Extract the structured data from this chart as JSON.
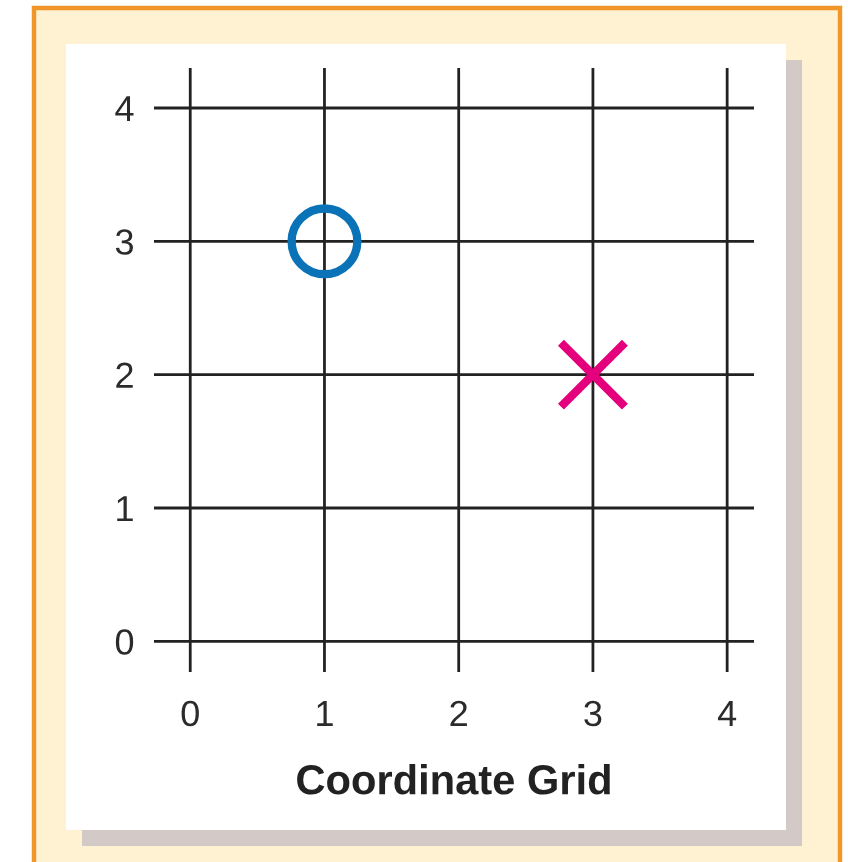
{
  "chart_data": {
    "type": "scatter",
    "xlabel": "Coordinate Grid",
    "series": [
      {
        "x": [
          1
        ],
        "values": [
          3
        ],
        "color": "#0a73b7",
        "marker": "circle"
      },
      {
        "x": [
          3
        ],
        "values": [
          2
        ],
        "color": "#e4007c",
        "marker": "cross"
      }
    ],
    "xlim": [
      -0.27,
      4.2
    ],
    "ylim": [
      -0.23,
      4.3
    ],
    "xticks": [
      0,
      1,
      2,
      3,
      4
    ],
    "yticks": [
      0,
      1,
      2,
      3,
      4
    ],
    "grid": true
  }
}
